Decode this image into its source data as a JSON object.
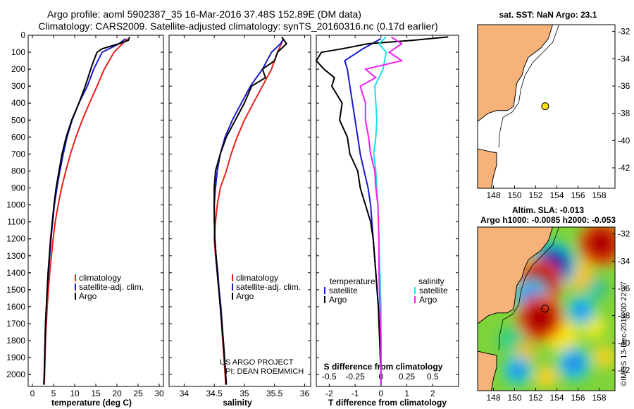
{
  "header": {
    "title_line1": "Argo profile: aoml 5902387_35 16-Mar-2016 37.48S 152.89E (DM data)",
    "title_line2": "Climatology: CARS2009. Satellite-adjusted climatology: synTS_20160316.nc (0.17d earlier)"
  },
  "colors": {
    "climatology": "#e8201c",
    "satellite": "#1a1acc",
    "argo": "#000000",
    "sat_salinity": "#19e0e8",
    "argo_salinity": "#ee22ee",
    "land": "#f7b27a"
  },
  "credits": {
    "line1": "US ARGO PROJECT",
    "line2": "PI: DEAN ROEMMICH"
  },
  "imos_stamp": "©IMOS 13-Dec-2018 00:22:17",
  "chart_data": [
    {
      "type": "line",
      "name": "temperature",
      "xlabel": "temperature (deg C)",
      "ylabel": "",
      "xlim": [
        -1,
        31
      ],
      "ylim": [
        2070,
        0
      ],
      "xticks": [
        "0",
        "5",
        "10",
        "15",
        "20",
        "25",
        "30"
      ],
      "yticks": [
        "0",
        "100",
        "200",
        "300",
        "400",
        "500",
        "600",
        "700",
        "800",
        "900",
        "1000",
        "1100",
        "1200",
        "1300",
        "1400",
        "1500",
        "1600",
        "1700",
        "1800",
        "1900",
        "2000"
      ],
      "legend": [
        "climatology",
        "satellite-adj. clim.",
        "Argo"
      ],
      "series": [
        {
          "name": "climatology",
          "depth": [
            20,
            100,
            200,
            300,
            400,
            500,
            600,
            700,
            800,
            900,
            1000,
            1100,
            1200,
            1300,
            1400,
            1500,
            1600,
            1700,
            1800,
            1900,
            2000,
            2060
          ],
          "values": [
            22.5,
            19.3,
            17.0,
            15.3,
            13.5,
            11.8,
            10.3,
            9.0,
            7.9,
            6.9,
            6.1,
            5.4,
            4.9,
            4.5,
            4.1,
            3.8,
            3.5,
            3.3,
            3.1,
            3.0,
            2.9,
            2.8
          ]
        },
        {
          "name": "satellite-adj. clim.",
          "depth": [
            20,
            50,
            100,
            200,
            300,
            400,
            500,
            600,
            700,
            800,
            900,
            1000,
            1100,
            1200,
            1300,
            1400,
            1500,
            1600,
            1700,
            1800,
            1900,
            2000,
            2060
          ],
          "values": [
            22.0,
            20.5,
            16.5,
            14.5,
            13.0,
            11.0,
            9.4,
            8.2,
            7.3,
            6.5,
            5.8,
            5.2,
            4.8,
            4.4,
            4.1,
            3.8,
            3.5,
            3.3,
            3.1,
            3.0,
            2.9,
            2.8,
            2.7
          ]
        },
        {
          "name": "Argo",
          "depth": [
            10,
            30,
            50,
            80,
            100,
            150,
            200,
            300,
            400,
            500,
            600,
            700,
            800,
            900,
            1000,
            1100,
            1200,
            1300,
            1400,
            1500,
            1600,
            1700,
            1800,
            1900,
            2000,
            2060
          ],
          "values": [
            23.0,
            22.7,
            20.5,
            16.5,
            15.3,
            14.5,
            13.8,
            12.5,
            11.0,
            9.3,
            8.0,
            7.0,
            6.3,
            5.6,
            5.1,
            4.7,
            4.3,
            4.0,
            3.7,
            3.5,
            3.3,
            3.1,
            3.0,
            2.9,
            2.8,
            2.7
          ]
        }
      ]
    },
    {
      "type": "line",
      "name": "salinity",
      "xlabel": "salinity",
      "ylabel": "",
      "xlim": [
        33.75,
        36.1
      ],
      "ylim": [
        2070,
        0
      ],
      "xticks": [
        "34",
        "34.5",
        "35",
        "35.5",
        "36"
      ],
      "legend": [
        "climatology",
        "satellite-adj. clim.",
        "Argo"
      ],
      "series": [
        {
          "name": "climatology",
          "depth": [
            20,
            100,
            200,
            300,
            400,
            500,
            600,
            700,
            800,
            900,
            1000,
            1100,
            1200,
            1300,
            1400,
            1500,
            1600,
            1700,
            1800,
            1900,
            2000,
            2060
          ],
          "values": [
            35.65,
            35.55,
            35.45,
            35.3,
            35.15,
            35.0,
            34.88,
            34.78,
            34.7,
            34.6,
            34.55,
            34.52,
            34.5,
            34.52,
            34.55,
            34.58,
            34.6,
            34.62,
            34.64,
            34.66,
            34.68,
            34.69
          ]
        },
        {
          "name": "satellite-adj. clim.",
          "depth": [
            20,
            50,
            100,
            200,
            300,
            400,
            500,
            600,
            700,
            800,
            900,
            1000,
            1100,
            1200,
            1300,
            1400,
            1500,
            1600,
            1700,
            1800,
            1900,
            2000,
            2060
          ],
          "values": [
            35.65,
            35.6,
            35.45,
            35.3,
            35.1,
            34.95,
            34.8,
            34.68,
            34.6,
            34.55,
            34.52,
            34.5,
            34.5,
            34.51,
            34.53,
            34.56,
            34.58,
            34.61,
            34.63,
            34.65,
            34.67,
            34.69,
            34.7
          ]
        },
        {
          "name": "Argo",
          "depth": [
            10,
            50,
            100,
            150,
            200,
            250,
            300,
            400,
            500,
            600,
            700,
            800,
            900,
            1000,
            1200,
            1400,
            1600,
            1800,
            2000,
            2060
          ],
          "values": [
            35.62,
            35.7,
            35.55,
            35.5,
            35.3,
            35.35,
            35.12,
            35.0,
            34.85,
            34.7,
            34.6,
            34.52,
            34.5,
            34.5,
            34.51,
            34.55,
            34.6,
            34.65,
            34.69,
            34.7
          ]
        }
      ]
    },
    {
      "type": "line",
      "name": "difference",
      "xlabel": "T difference from climatology",
      "x2label": "S difference from climatology",
      "xlim": [
        -2.5,
        3
      ],
      "ylim": [
        2070,
        0
      ],
      "xticks": [
        "-2",
        "-1",
        "0",
        "1",
        "2"
      ],
      "x2ticks": [
        "-0.5",
        "-0.25",
        "0",
        "0.25",
        "0.5"
      ],
      "legend_left_title": "temperature",
      "legend_right_title": "salinity",
      "legend_left": [
        "satellite",
        "Argo"
      ],
      "legend_right": [
        "satellite",
        "Argo"
      ],
      "series": [
        {
          "name": "T satellite",
          "depth": [
            20,
            80,
            150,
            200,
            300,
            400,
            500,
            600,
            700,
            800,
            900,
            1000,
            1200,
            1400,
            1600,
            1800,
            2000,
            2060
          ],
          "values": [
            0,
            -0.7,
            -1.4,
            -1.3,
            -1.2,
            -1.1,
            -1.0,
            -0.9,
            -0.8,
            -0.65,
            -0.5,
            -0.4,
            -0.3,
            -0.2,
            -0.1,
            -0.05,
            0,
            0
          ]
        },
        {
          "name": "T Argo",
          "depth": [
            10,
            30,
            50,
            80,
            100,
            150,
            200,
            250,
            300,
            400,
            500,
            600,
            700,
            800,
            900,
            1000,
            1100,
            1200,
            1400,
            1600,
            1800,
            2000,
            2060
          ],
          "values": [
            2.6,
            1.2,
            -0.5,
            -1.5,
            -2.3,
            -2.5,
            -2.2,
            -1.8,
            -1.9,
            -1.5,
            -1.6,
            -1.3,
            -1.2,
            -0.9,
            -0.8,
            -0.6,
            -0.4,
            -0.3,
            -0.2,
            -0.1,
            -0.05,
            0,
            0
          ]
        },
        {
          "name": "S satellite",
          "depth": [
            10,
            50,
            100,
            200,
            300,
            400,
            500,
            600,
            700,
            800,
            900,
            1000,
            1200,
            1400,
            1600,
            1800,
            2000,
            2060
          ],
          "values": [
            0.05,
            -0.02,
            0.05,
            0.02,
            -0.06,
            -0.05,
            -0.04,
            -0.05,
            -0.07,
            -0.05,
            -0.04,
            -0.03,
            -0.02,
            -0.01,
            0,
            0,
            0,
            0
          ]
        },
        {
          "name": "S Argo",
          "depth": [
            10,
            50,
            100,
            150,
            200,
            250,
            300,
            400,
            500,
            600,
            700,
            800,
            900,
            1000,
            1200,
            1400,
            1600,
            1800,
            2000,
            2060
          ],
          "values": [
            0.1,
            0.2,
            0.08,
            0.2,
            -0.15,
            -0.05,
            -0.2,
            -0.15,
            -0.15,
            -0.12,
            -0.1,
            -0.06,
            -0.05,
            -0.03,
            -0.02,
            -0.02,
            -0.01,
            0,
            0,
            0
          ]
        }
      ]
    },
    {
      "type": "map",
      "name": "sst-map",
      "title": "sat. SST: NaN Argo: 23.1",
      "xticks": [
        "148",
        "150",
        "152",
        "154",
        "156",
        "158"
      ],
      "yticks": [
        "-32",
        "-34",
        "-36",
        "-38",
        "-40",
        "-42"
      ],
      "xlim": [
        146.5,
        159.5
      ],
      "ylim": [
        -43.5,
        -31.5
      ],
      "marker": {
        "lon": 152.89,
        "lat": -37.48
      }
    },
    {
      "type": "heatmap",
      "name": "sla-map",
      "title_line1": "Altim. SLA: -0.013",
      "title_line2": "Argo h1000: -0.0085 h2000: -0.053",
      "xticks": [
        "148",
        "150",
        "152",
        "154",
        "156",
        "158"
      ],
      "yticks": [
        "-32",
        "-34",
        "-36",
        "-38",
        "-40",
        "-42"
      ],
      "xlim": [
        146.5,
        159.5
      ],
      "ylim": [
        -43.5,
        -31.5
      ],
      "marker": {
        "lon": 152.89,
        "lat": -37.48
      },
      "eddies": [
        {
          "lon": 153.6,
          "lat": -34.3,
          "value": -0.9
        },
        {
          "lon": 152.2,
          "lat": -35.6,
          "value": 0.9
        },
        {
          "lon": 151.5,
          "lat": -36.6,
          "value": -0.5
        },
        {
          "lon": 152.4,
          "lat": -38.2,
          "value": 0.85
        },
        {
          "lon": 158.2,
          "lat": -32.7,
          "value": 0.8
        },
        {
          "lon": 156.3,
          "lat": -37.6,
          "value": -0.3
        },
        {
          "lon": 155.6,
          "lat": -41.5,
          "value": -0.45
        },
        {
          "lon": 150.3,
          "lat": -42.0,
          "value": -0.3
        }
      ]
    }
  ]
}
